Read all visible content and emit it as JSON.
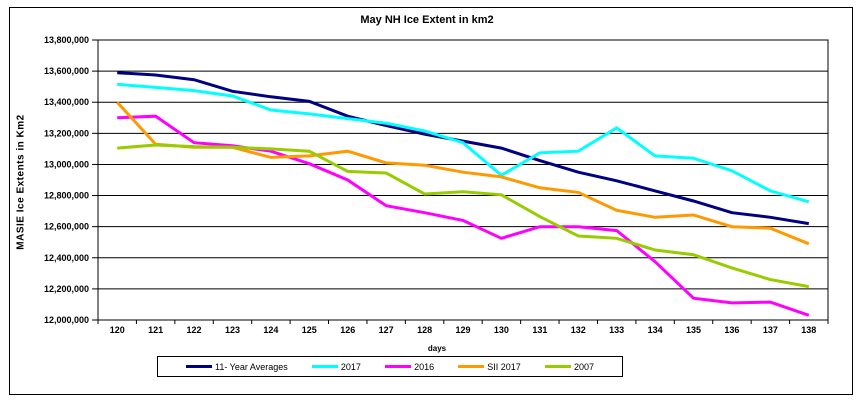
{
  "window": {
    "background": "#ffffff",
    "frame_border_color": "#000000"
  },
  "chart_data": {
    "type": "line",
    "title": "May NH Ice Extent in km2",
    "xlabel": "days",
    "ylabel": "MASIE Ice Extents in Km2",
    "grid": true,
    "gridline_color": "#000000",
    "legend_position": "bottom",
    "ylim": [
      12000000,
      13800000
    ],
    "ytick_step": 200000,
    "x": [
      120,
      121,
      122,
      123,
      124,
      125,
      126,
      127,
      128,
      129,
      130,
      131,
      132,
      133,
      134,
      135,
      136,
      137,
      138
    ],
    "series": [
      {
        "name": "11- Year Averages",
        "color": "#000080",
        "values": [
          13590000,
          13575000,
          13545000,
          13470000,
          13435000,
          13405000,
          13310000,
          13250000,
          13195000,
          13150000,
          13105000,
          13025000,
          12950000,
          12895000,
          12830000,
          12765000,
          12690000,
          12660000,
          12620000
        ]
      },
      {
        "name": "2017",
        "color": "#00FFFF",
        "values": [
          13515000,
          13495000,
          13475000,
          13440000,
          13350000,
          13325000,
          13295000,
          13265000,
          13215000,
          13140000,
          12930000,
          13075000,
          13085000,
          13235000,
          13055000,
          13040000,
          12960000,
          12830000,
          12760000
        ]
      },
      {
        "name": "2016",
        "color": "#FF00FF",
        "values": [
          13300000,
          13310000,
          13140000,
          13120000,
          13085000,
          13005000,
          12900000,
          12735000,
          12690000,
          12640000,
          12525000,
          12600000,
          12600000,
          12575000,
          12375000,
          12140000,
          12110000,
          12115000,
          12030000
        ]
      },
      {
        "name": "SII 2017",
        "color": "#FF9900",
        "values": [
          13400000,
          13130000,
          13110000,
          13110000,
          13045000,
          13055000,
          13085000,
          13010000,
          12995000,
          12950000,
          12920000,
          12850000,
          12820000,
          12705000,
          12660000,
          12675000,
          12600000,
          12590000,
          12490000
        ]
      },
      {
        "name": "2007",
        "color": "#99CC00",
        "values": [
          13105000,
          13125000,
          13115000,
          13110000,
          13100000,
          13085000,
          12955000,
          12945000,
          12810000,
          12825000,
          12805000,
          12665000,
          12540000,
          12525000,
          12450000,
          12420000,
          12335000,
          12260000,
          12215000
        ]
      }
    ]
  }
}
